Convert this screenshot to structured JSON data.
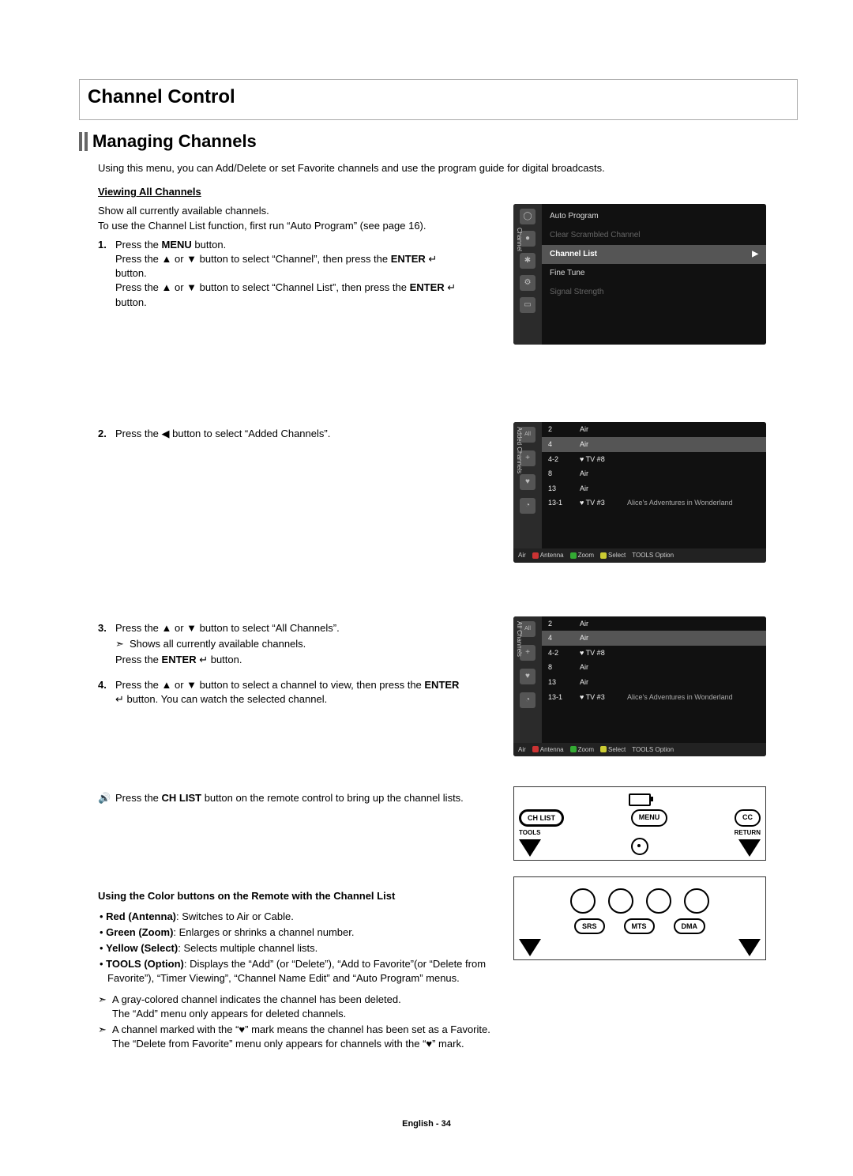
{
  "h1": "Channel Control",
  "h2": "Managing Channels",
  "intro": "Using this menu, you can Add/Delete or set Favorite channels and use the program guide for digital broadcasts.",
  "sub_head": "Viewing All Channels",
  "viewing_intro1": "Show all currently available channels.",
  "viewing_intro2": "To use the Channel List function, first run “Auto Program” (see page 16).",
  "step1_a": "Press the ",
  "step1_menu": "MENU",
  "step1_b": " button.",
  "step1_c": "Press the ▲ or ▼ button to select “Channel”, then press the ",
  "step1_enter": "ENTER",
  "step1_icon": " ↵ ",
  "step1_d": "button.",
  "step1_e": "Press the ▲ or ▼ button to select “Channel List”, then press the ",
  "step1_f": "button.",
  "step2": "Press the ◀ button to select “Added Channels”.",
  "step3_a": "Press the ▲ or ▼ button to select “All Channels”.",
  "step3_note": "Shows all currently available channels.",
  "step3_b": "Press the ",
  "step3_c": " ↵ button.",
  "step4_a": "Press the ▲ or ▼ button to select a channel to view, then press the ",
  "step4_b": " ↵ button. You can watch the selected channel.",
  "remote_note_a": "Press the ",
  "remote_note_b": "CH LIST",
  "remote_note_c": " button on the remote control to bring up the channel lists.",
  "color_head": "Using the Color buttons on the Remote with the Channel List",
  "color_red_label": "Red (Antenna)",
  "color_red_txt": ": Switches to Air or Cable.",
  "color_green_label": "Green (Zoom)",
  "color_green_txt": ": Enlarges or shrinks a channel number.",
  "color_yellow_label": "Yellow (Select)",
  "color_yellow_txt": ": Selects multiple channel lists.",
  "color_tools_label": "TOOLS (Option)",
  "color_tools_txt": ": Displays the “Add” (or “Delete”), “Add to Favorite”(or “Delete from Favorite”), “Timer Viewing”, “Channel Name Edit” and “Auto Program” menus.",
  "gray_note1": "A gray-colored channel indicates the channel has been deleted.",
  "gray_note2": "The “Add” menu only appears for deleted channels.",
  "heart_note1": "A channel marked with the “♥” mark means the channel has been set as a Favorite.",
  "heart_note2": "The “Delete from Favorite” menu only appears for channels with the “♥” mark.",
  "footer": "English - 34",
  "menu_shot": {
    "side_label": "Channel",
    "items": [
      {
        "label": "Auto Program",
        "dim": false
      },
      {
        "label": "Clear Scrambled Channel",
        "dim": true
      },
      {
        "label": "Channel List",
        "hl": true,
        "arrow": "▶"
      },
      {
        "label": "Fine Tune",
        "dim": false
      },
      {
        "label": "Signal Strength",
        "dim": true
      }
    ]
  },
  "channel_rows": [
    {
      "c1": "2",
      "c2": "Air",
      "c3": ""
    },
    {
      "c1": "4",
      "c2": "Air",
      "c3": "",
      "hl": true
    },
    {
      "c1": "4-2",
      "c2": "♥ TV #8",
      "c3": ""
    },
    {
      "c1": "8",
      "c2": "Air",
      "c3": ""
    },
    {
      "c1": "13",
      "c2": "Air",
      "c3": ""
    },
    {
      "c1": "13-1",
      "c2": "♥ TV #3",
      "c3": "Alice's Adventures in Wonderland"
    }
  ],
  "ch_footer": {
    "air": "Air",
    "ant": "Antenna",
    "zoom": "Zoom",
    "select": "Select",
    "opt": "Option",
    "tools": "TOOLS"
  },
  "shot2_label": "Added Channels",
  "shot3_label": "All Channels",
  "remote1": {
    "chlist": "CH LIST",
    "menu": "MENU",
    "cc": "CC",
    "tools": "TOOLS",
    "return": "RETURN"
  },
  "remote2": {
    "srs": "SRS",
    "mts": "MTS",
    "dma": "DMA"
  }
}
